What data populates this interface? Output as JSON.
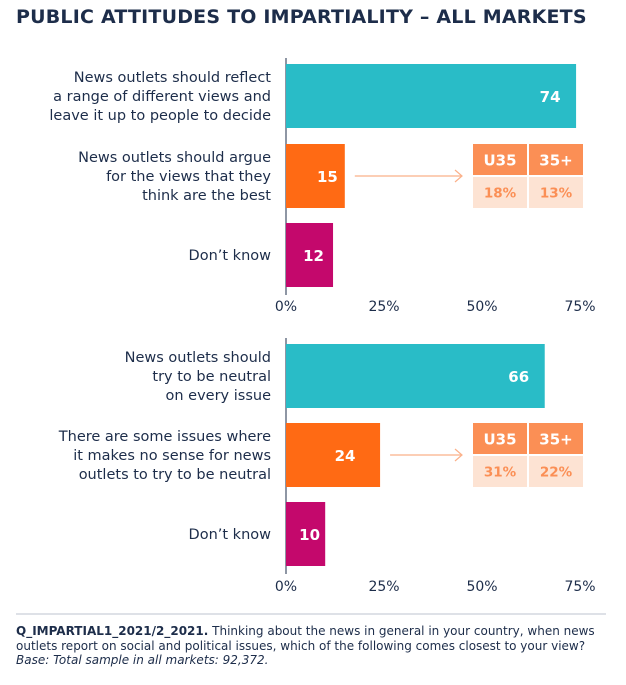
{
  "title": "PUBLIC ATTITUDES TO IMPARTIALITY – ALL MARKETS",
  "colors": {
    "cyan": "#29bcc7",
    "orange": "#ff6a14",
    "magenta": "#c4086c",
    "box_header": "#fb8f55",
    "box_cell": "#fde3d3",
    "navy": "#1d2d4a"
  },
  "chart_data": [
    {
      "type": "bar",
      "orientation": "horizontal",
      "categories": [
        [
          "News outlets should reflect",
          "a range of different views and",
          "leave it up to people to decide"
        ],
        [
          "News outlets should argue",
          "for the views that they",
          "think are the best"
        ],
        [
          "Don’t know"
        ]
      ],
      "values": [
        74,
        15,
        12
      ],
      "value_labels": [
        "74",
        "15",
        "12"
      ],
      "bar_colors": [
        "cyan",
        "orange",
        "magenta"
      ],
      "xlim": [
        0,
        75
      ],
      "ticks": [
        "0%",
        "25%",
        "50%",
        "75%"
      ],
      "tick_values": [
        0,
        25,
        50,
        75
      ],
      "age_breakdown": {
        "row": 1,
        "headers": [
          "U35",
          "35+"
        ],
        "values": [
          "18%",
          "13%"
        ]
      }
    },
    {
      "type": "bar",
      "orientation": "horizontal",
      "categories": [
        [
          "News outlets should",
          "try to be neutral",
          "on every issue"
        ],
        [
          "There are some issues where",
          "it makes no sense for news",
          "outlets to try to be neutral"
        ],
        [
          "Don’t know"
        ]
      ],
      "values": [
        66,
        24,
        10
      ],
      "value_labels": [
        "66",
        "24",
        "10"
      ],
      "bar_colors": [
        "cyan",
        "orange",
        "magenta"
      ],
      "xlim": [
        0,
        75
      ],
      "ticks": [
        "0%",
        "25%",
        "50%",
        "75%"
      ],
      "tick_values": [
        0,
        25,
        50,
        75
      ],
      "age_breakdown": {
        "row": 1,
        "headers": [
          "U35",
          "35+"
        ],
        "values": [
          "31%",
          "22%"
        ]
      }
    }
  ],
  "footnote": {
    "code": "Q_IMPARTIAL1_2021/2_2021.",
    "question": "Thinking about the news in general in your country, when news outlets report on social and political issues, which of the following comes closest to your view?",
    "base": "Base: Total sample in all markets: 92,372."
  }
}
